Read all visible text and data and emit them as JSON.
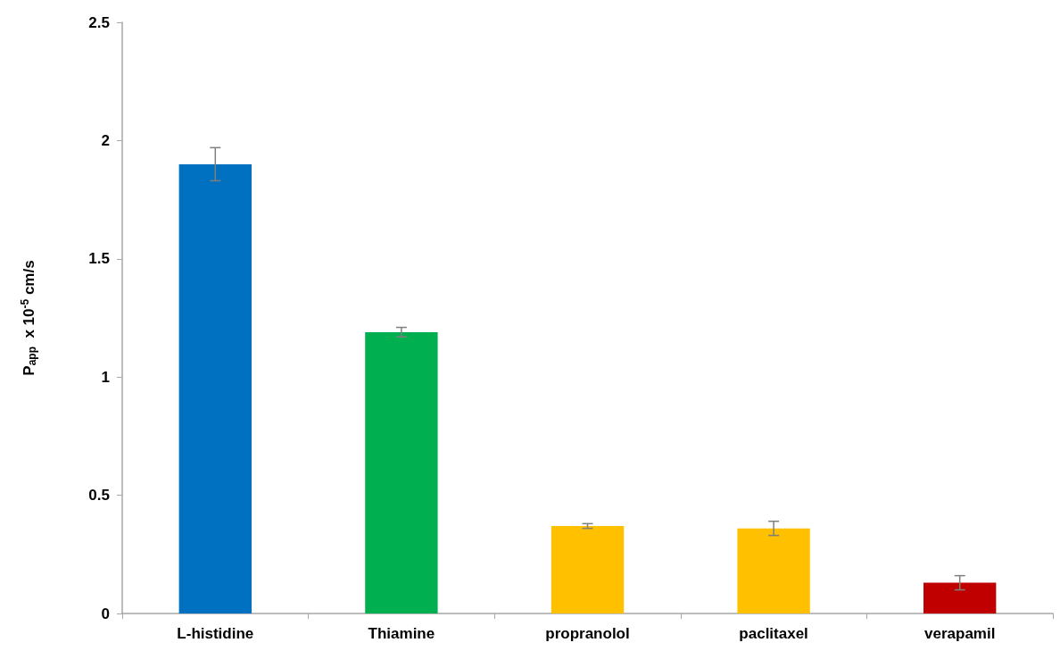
{
  "chart_data": {
    "type": "bar",
    "categories": [
      "L-histidine",
      "Thiamine",
      "propranolol",
      "paclitaxel",
      "verapamil"
    ],
    "values": [
      1.9,
      1.19,
      0.37,
      0.36,
      0.13
    ],
    "errors": [
      0.07,
      0.02,
      0.01,
      0.03,
      0.03
    ],
    "colors": [
      "#0070c0",
      "#00b050",
      "#ffc000",
      "#ffc000",
      "#c00000"
    ],
    "ylabel": "P$_{app}$  x 10$^{-5}$ cm/s",
    "ylim": [
      0,
      2.5
    ],
    "yticks": [
      0,
      0.5,
      1,
      1.5,
      2,
      2.5
    ],
    "grid": false
  }
}
